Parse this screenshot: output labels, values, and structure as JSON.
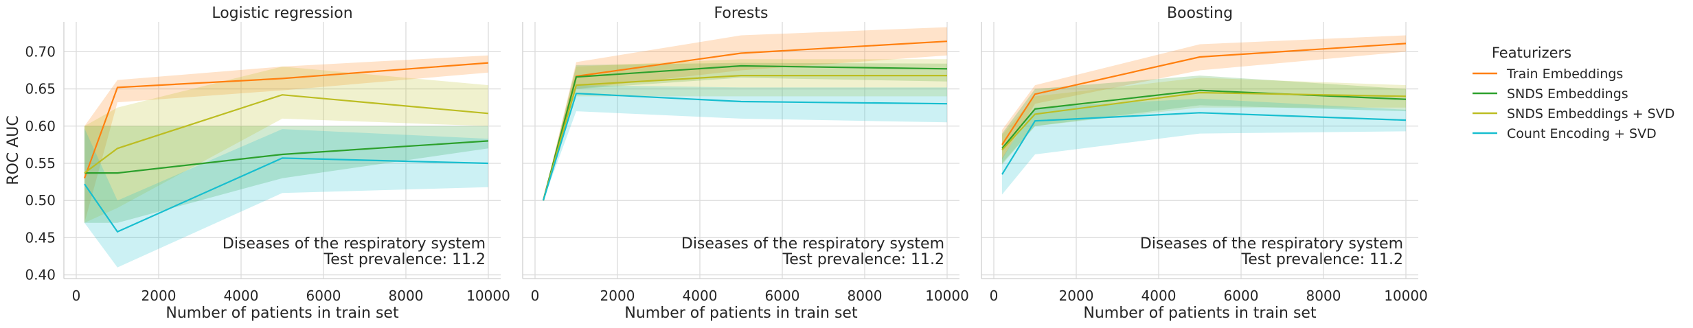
{
  "chart_data": [
    {
      "type": "line",
      "title": "Logistic regression",
      "xlabel": "Number of patients in train set",
      "ylabel": "ROC AUC",
      "xlim": [
        -300,
        10300
      ],
      "ylim": [
        0.395,
        0.74
      ],
      "xticks": [
        "0",
        "2000",
        "4000",
        "6000",
        "8000",
        "10000"
      ],
      "yticks": [
        "0.40",
        "0.45",
        "0.50",
        "0.55",
        "0.60",
        "0.65",
        "0.70"
      ],
      "grid": true,
      "annotation": [
        "Diseases of the respiratory system",
        "Test prevalence: 11.2"
      ],
      "x": [
        200,
        1000,
        5000,
        10000
      ],
      "series": [
        {
          "name": "Train Embeddings",
          "color": "#ff7f0e",
          "values": [
            0.53,
            0.652,
            0.664,
            0.685
          ],
          "lower": [
            0.47,
            0.632,
            0.648,
            0.672
          ],
          "upper": [
            0.6,
            0.662,
            0.68,
            0.695
          ]
        },
        {
          "name": "SNDS Embeddings",
          "color": "#2ca02c",
          "values": [
            0.537,
            0.537,
            0.562,
            0.58
          ],
          "lower": [
            0.47,
            0.47,
            0.53,
            0.57
          ],
          "upper": [
            0.6,
            0.6,
            0.6,
            0.6
          ]
        },
        {
          "name": "SNDS Embeddings + SVD",
          "color": "#bcbd22",
          "values": [
            0.537,
            0.57,
            0.642,
            0.617
          ],
          "lower": [
            0.47,
            0.49,
            0.61,
            0.6
          ],
          "upper": [
            0.6,
            0.625,
            0.68,
            0.655
          ]
        },
        {
          "name": "Count Encoding + SVD",
          "color": "#17becf",
          "values": [
            0.522,
            0.458,
            0.557,
            0.55
          ],
          "lower": [
            0.47,
            0.41,
            0.51,
            0.518
          ],
          "upper": [
            0.597,
            0.5,
            0.596,
            0.583
          ]
        }
      ]
    },
    {
      "type": "line",
      "title": "Forests",
      "xlabel": "Number of patients in train set",
      "ylabel": "",
      "xlim": [
        -300,
        10300
      ],
      "ylim": [
        0.395,
        0.74
      ],
      "xticks": [
        "0",
        "2000",
        "4000",
        "6000",
        "8000",
        "10000"
      ],
      "yticks": [],
      "grid": true,
      "annotation": [
        "Diseases of the respiratory system",
        "Test prevalence: 11.2"
      ],
      "x": [
        200,
        1000,
        5000,
        10000
      ],
      "series": [
        {
          "name": "Train Embeddings",
          "color": "#ff7f0e",
          "values": [
            0.5,
            0.667,
            0.698,
            0.714
          ],
          "lower": [
            0.5,
            0.65,
            0.675,
            0.695
          ],
          "upper": [
            0.5,
            0.686,
            0.722,
            0.733
          ]
        },
        {
          "name": "SNDS Embeddings",
          "color": "#2ca02c",
          "values": [
            0.5,
            0.666,
            0.681,
            0.677
          ],
          "lower": [
            0.5,
            0.65,
            0.665,
            0.66
          ],
          "upper": [
            0.5,
            0.682,
            0.685,
            0.684
          ]
        },
        {
          "name": "SNDS Embeddings + SVD",
          "color": "#bcbd22",
          "values": [
            0.5,
            0.655,
            0.668,
            0.668
          ],
          "lower": [
            0.5,
            0.64,
            0.64,
            0.64
          ],
          "upper": [
            0.5,
            0.68,
            0.69,
            0.69
          ]
        },
        {
          "name": "Count Encoding + SVD",
          "color": "#17becf",
          "values": [
            0.5,
            0.644,
            0.633,
            0.63
          ],
          "lower": [
            0.5,
            0.62,
            0.61,
            0.605
          ],
          "upper": [
            0.5,
            0.655,
            0.652,
            0.652
          ]
        }
      ]
    },
    {
      "type": "line",
      "title": "Boosting",
      "xlabel": "Number of patients in train set",
      "ylabel": "",
      "xlim": [
        -300,
        10300
      ],
      "ylim": [
        0.395,
        0.74
      ],
      "xticks": [
        "0",
        "2000",
        "4000",
        "6000",
        "8000",
        "10000"
      ],
      "yticks": [],
      "grid": true,
      "annotation": [
        "Diseases of the respiratory system",
        "Test prevalence: 11.2"
      ],
      "x": [
        200,
        1000,
        5000,
        10000
      ],
      "series": [
        {
          "name": "Train Embeddings",
          "color": "#ff7f0e",
          "values": [
            0.575,
            0.643,
            0.693,
            0.711
          ],
          "lower": [
            0.555,
            0.63,
            0.675,
            0.7
          ],
          "upper": [
            0.595,
            0.655,
            0.71,
            0.722
          ]
        },
        {
          "name": "SNDS Embeddings",
          "color": "#2ca02c",
          "values": [
            0.57,
            0.623,
            0.648,
            0.636
          ],
          "lower": [
            0.55,
            0.6,
            0.628,
            0.62
          ],
          "upper": [
            0.59,
            0.65,
            0.668,
            0.65
          ]
        },
        {
          "name": "SNDS Embeddings + SVD",
          "color": "#bcbd22",
          "values": [
            0.568,
            0.616,
            0.645,
            0.64
          ],
          "lower": [
            0.548,
            0.6,
            0.625,
            0.625
          ],
          "upper": [
            0.588,
            0.64,
            0.665,
            0.655
          ]
        },
        {
          "name": "Count Encoding + SVD",
          "color": "#17becf",
          "values": [
            0.535,
            0.607,
            0.618,
            0.608
          ],
          "lower": [
            0.508,
            0.562,
            0.59,
            0.593
          ],
          "upper": [
            0.557,
            0.625,
            0.637,
            0.622
          ]
        }
      ]
    }
  ],
  "legend": {
    "title": "Featurizers",
    "placement": "right",
    "items": [
      {
        "label": "Train Embeddings",
        "color": "#ff7f0e"
      },
      {
        "label": "SNDS Embeddings",
        "color": "#2ca02c"
      },
      {
        "label": "SNDS Embeddings + SVD",
        "color": "#bcbd22"
      },
      {
        "label": "Count Encoding + SVD",
        "color": "#17becf"
      }
    ]
  }
}
